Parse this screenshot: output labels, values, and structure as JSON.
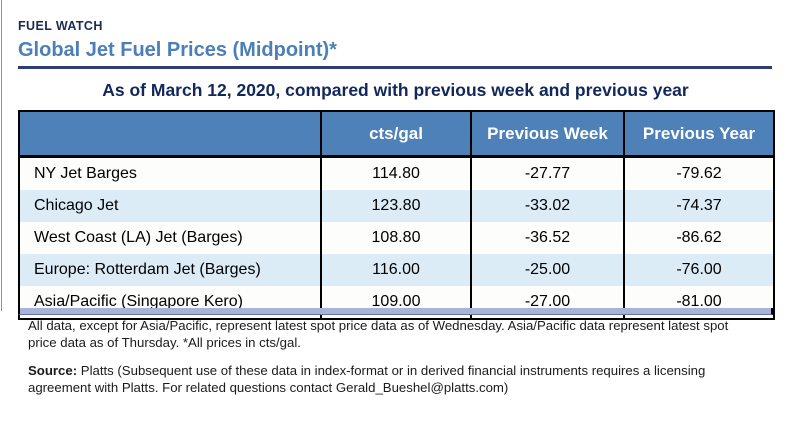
{
  "page": {
    "kicker": "FUEL WATCH",
    "title": "Global Jet Fuel Prices (Midpoint)*",
    "subtitle": "As of March 12, 2020, compared with previous week and previous year"
  },
  "table": {
    "columns": [
      "",
      "cts/gal",
      "Previous Week",
      "Previous Year"
    ],
    "rows": [
      {
        "label": "NY Jet Barges",
        "cts_gal": "114.80",
        "prev_week": "-27.77",
        "prev_year": "-79.62"
      },
      {
        "label": "Chicago Jet",
        "cts_gal": "123.80",
        "prev_week": "-33.02",
        "prev_year": "-74.37"
      },
      {
        "label": "West Coast (LA) Jet (Barges)",
        "cts_gal": "108.80",
        "prev_week": "-36.52",
        "prev_year": "-86.62"
      },
      {
        "label": "Europe: Rotterdam Jet (Barges)",
        "cts_gal": "116.00",
        "prev_week": "-25.00",
        "prev_year": "-76.00"
      },
      {
        "label": "Asia/Pacific (Singapore Kero)",
        "cts_gal": "109.00",
        "prev_week": "-27.00",
        "prev_year": "-81.00"
      }
    ]
  },
  "footnotes": {
    "data_note": "All data, except for Asia/Pacific, represent latest spot price data as of Wednesday. Asia/Pacific data represent latest spot price data as of Thursday. *All prices in cts/gal.",
    "source_label": "Source:",
    "source_text": " Platts (Subsequent use of these data in index-format or in derived financial instruments requires a licensing agreement with Platts. For related questions contact Gerald_Bueshel@platts.com)"
  },
  "colors": {
    "header_bg": "#4e81b8",
    "row_stripe": "#dcecf7",
    "title_blue": "#4c7fb8",
    "accent_navy": "#12275c",
    "rule_navy": "#2c3f6f",
    "bottom_bar_lavender": "#a8b3d9"
  }
}
